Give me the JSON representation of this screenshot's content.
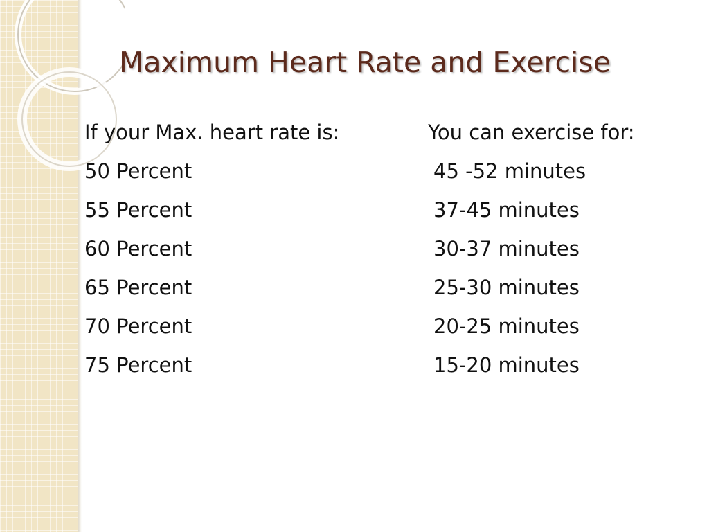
{
  "slide": {
    "title": "Maximum Heart Rate and Exercise",
    "accent_color": "#5c2a1c",
    "side_band_color": "#f1e5c5"
  },
  "table": {
    "headers": [
      "If your Max. heart rate is:",
      "You can exercise for:"
    ],
    "rows": [
      [
        "50 Percent",
        "45 -52 minutes"
      ],
      [
        "55 Percent",
        "37-45 minutes"
      ],
      [
        "60 Percent",
        "30-37 minutes"
      ],
      [
        "65 Percent",
        "25-30 minutes"
      ],
      [
        "70 Percent",
        "20-25 minutes"
      ],
      [
        "75 Percent",
        "15-20 minutes"
      ]
    ]
  }
}
